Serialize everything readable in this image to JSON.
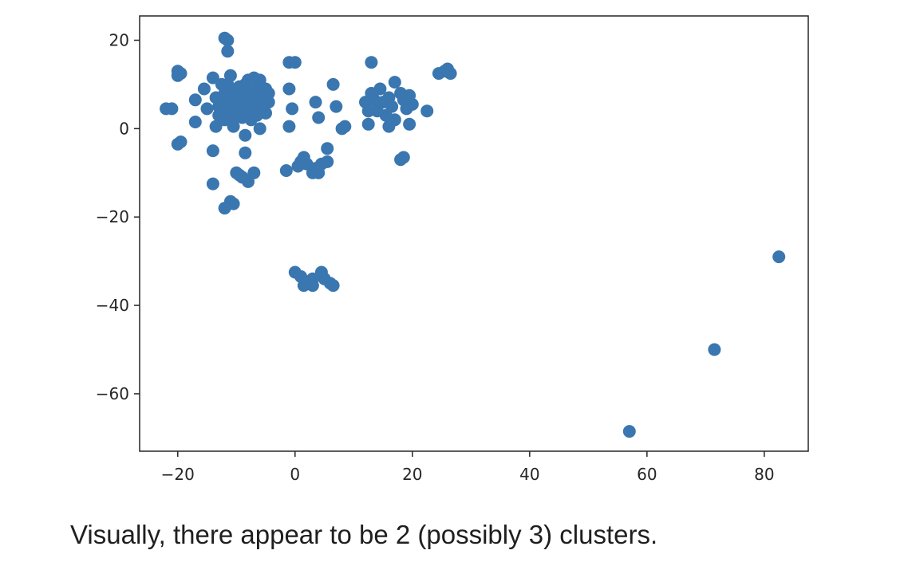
{
  "chart_data": {
    "type": "scatter",
    "title": "",
    "xlabel": "",
    "ylabel": "",
    "xlim": [
      -26.5,
      87.5
    ],
    "ylim": [
      -73,
      25.5
    ],
    "x_ticks": [
      -20,
      0,
      20,
      40,
      60,
      80
    ],
    "y_ticks": [
      20,
      0,
      -20,
      -40,
      -60
    ],
    "x_tick_labels": [
      "−20",
      "0",
      "20",
      "40",
      "60",
      "80"
    ],
    "y_tick_labels": [
      "20",
      "0",
      "−20",
      "−40",
      "−60"
    ],
    "grid": false,
    "legend": "none",
    "marker_color": "#3a76af",
    "series": [
      {
        "points": [
          [
            -22,
            4.5
          ],
          [
            -21,
            4.5
          ],
          [
            -20,
            13
          ],
          [
            -19.5,
            12.5
          ],
          [
            -20,
            12
          ],
          [
            -19.5,
            -3
          ],
          [
            -20,
            -3.5
          ],
          [
            -17,
            6.5
          ],
          [
            -17,
            1.5
          ],
          [
            -15.5,
            9
          ],
          [
            -15,
            4.5
          ],
          [
            -14,
            11.5
          ],
          [
            -14,
            -5
          ],
          [
            -14,
            -12.5
          ],
          [
            -13.5,
            0.5
          ],
          [
            -13.5,
            7
          ],
          [
            -13,
            3
          ],
          [
            -12.5,
            5.5
          ],
          [
            -12,
            20.5
          ],
          [
            -11.5,
            20
          ],
          [
            -11.5,
            17.5
          ],
          [
            -11.5,
            10
          ],
          [
            -11,
            12
          ],
          [
            -11,
            6
          ],
          [
            -11,
            2
          ],
          [
            -10.5,
            8
          ],
          [
            -10.5,
            4
          ],
          [
            -10,
            3
          ],
          [
            -10,
            -10
          ],
          [
            -10.5,
            0.5
          ],
          [
            -9.5,
            9.5
          ],
          [
            -9.5,
            5
          ],
          [
            -9,
            7
          ],
          [
            -9,
            2.5
          ],
          [
            -9,
            -11
          ],
          [
            -8.5,
            -1.5
          ],
          [
            -8.5,
            10
          ],
          [
            -8,
            4
          ],
          [
            -8,
            8
          ],
          [
            -8.5,
            -5.5
          ],
          [
            -8,
            -12
          ],
          [
            -7.5,
            6
          ],
          [
            -7.5,
            2
          ],
          [
            -7,
            11.5
          ],
          [
            -7,
            5
          ],
          [
            -7,
            -10
          ],
          [
            -6.5,
            9
          ],
          [
            -6.5,
            3
          ],
          [
            -6,
            7
          ],
          [
            -6,
            0
          ],
          [
            -5.5,
            5
          ],
          [
            -5,
            9
          ],
          [
            -5,
            3.5
          ],
          [
            -4.5,
            6
          ],
          [
            -4.5,
            8
          ],
          [
            -12,
            -18
          ],
          [
            -11,
            -16.5
          ],
          [
            -10.5,
            -17
          ],
          [
            -9.5,
            -10.5
          ],
          [
            -12,
            8
          ],
          [
            -13,
            5
          ],
          [
            -12,
            2
          ],
          [
            -11.5,
            4
          ],
          [
            -10,
            6.5
          ],
          [
            -12.5,
            10
          ],
          [
            -8,
            11
          ],
          [
            -6,
            11
          ],
          [
            -1,
            15
          ],
          [
            0,
            15
          ],
          [
            -1,
            9
          ],
          [
            -0.5,
            4.5
          ],
          [
            -1,
            0.5
          ],
          [
            -1.5,
            -9.5
          ],
          [
            0.5,
            -8.5
          ],
          [
            1,
            -7.5
          ],
          [
            1.5,
            -6.5
          ],
          [
            2,
            -8
          ],
          [
            3,
            -10
          ],
          [
            3.5,
            -9
          ],
          [
            4,
            -10
          ],
          [
            4.5,
            -8
          ],
          [
            5.5,
            -7.5
          ],
          [
            5.5,
            -4.5
          ],
          [
            4,
            2.5
          ],
          [
            3.5,
            6
          ],
          [
            6.5,
            10
          ],
          [
            7,
            5
          ],
          [
            8,
            0
          ],
          [
            8.5,
            0.5
          ],
          [
            12,
            6
          ],
          [
            12.5,
            4
          ],
          [
            12.5,
            1
          ],
          [
            13,
            15
          ],
          [
            13,
            8
          ],
          [
            13.5,
            6.5
          ],
          [
            14,
            4
          ],
          [
            14.5,
            9
          ],
          [
            15,
            6
          ],
          [
            15.5,
            3
          ],
          [
            16,
            0.5
          ],
          [
            16,
            7
          ],
          [
            16.5,
            5
          ],
          [
            17,
            10.5
          ],
          [
            17,
            2
          ],
          [
            18,
            8
          ],
          [
            18,
            -7
          ],
          [
            18.5,
            -6.5
          ],
          [
            18.5,
            6.5
          ],
          [
            19,
            4.5
          ],
          [
            19.5,
            7.5
          ],
          [
            19.5,
            1
          ],
          [
            20,
            5.5
          ],
          [
            22.5,
            4
          ],
          [
            24.5,
            12.5
          ],
          [
            25.5,
            13
          ],
          [
            26,
            13.5
          ],
          [
            26.5,
            12.5
          ],
          [
            0,
            -32.5
          ],
          [
            1,
            -33.5
          ],
          [
            1.5,
            -35.5
          ],
          [
            2,
            -35
          ],
          [
            3,
            -35.5
          ],
          [
            3,
            -34
          ],
          [
            4.5,
            -32.5
          ],
          [
            5,
            -34
          ],
          [
            6,
            -35
          ],
          [
            6.5,
            -35.5
          ],
          [
            57,
            -68.5
          ],
          [
            71.5,
            -50
          ],
          [
            82.5,
            -29
          ]
        ]
      }
    ]
  },
  "caption": "Visually, there appear to be 2 (possibly 3) clusters."
}
